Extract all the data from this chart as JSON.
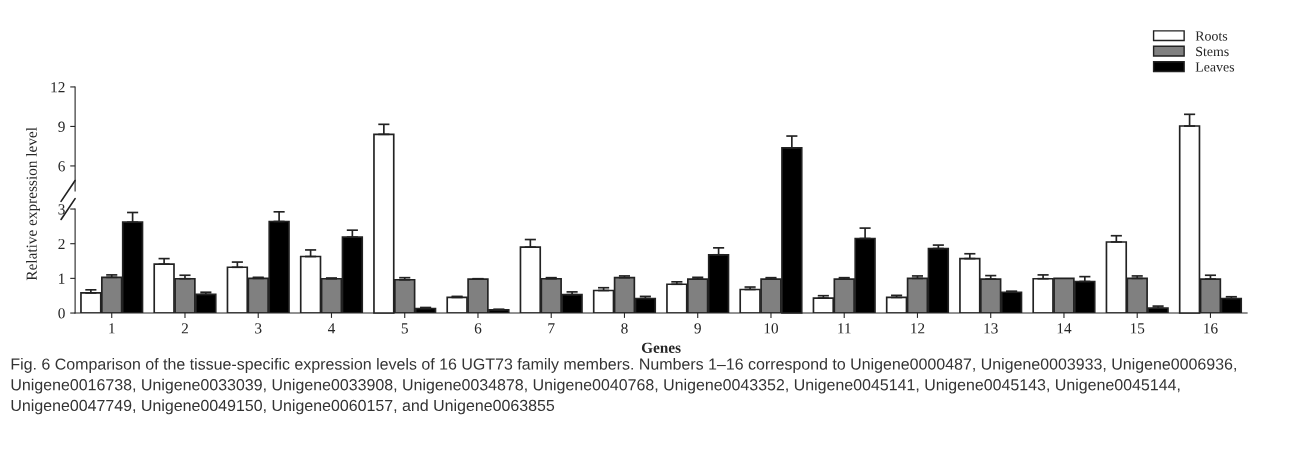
{
  "chart_data": [
    {
      "type": "bar",
      "categories": [
        "1",
        "2",
        "3",
        "4",
        "5",
        "6",
        "7",
        "8",
        "9",
        "10",
        "11",
        "12",
        "13",
        "14",
        "15",
        "16"
      ],
      "series": [
        {
          "name": "Roots",
          "color": "#ffffff",
          "values": [
            null,
            null,
            null,
            null,
            8.4,
            null,
            null,
            null,
            null,
            null,
            null,
            null,
            null,
            null,
            null,
            9.03
          ],
          "errors": [
            null,
            null,
            null,
            null,
            [
              8.4,
              9.16
            ],
            null,
            null,
            null,
            null,
            null,
            null,
            null,
            null,
            null,
            null,
            [
              9.03,
              9.92
            ]
          ]
        },
        {
          "name": "Stems",
          "color": "#808080",
          "values": [
            null,
            null,
            null,
            null,
            null,
            null,
            null,
            null,
            null,
            null,
            null,
            null,
            null,
            null,
            null,
            null
          ]
        },
        {
          "name": "Leaves",
          "color": "#000000",
          "values": [
            null,
            null,
            null,
            null,
            null,
            null,
            null,
            null,
            null,
            7.37,
            null,
            null,
            null,
            null,
            null,
            null
          ],
          "errors": [
            null,
            null,
            null,
            null,
            null,
            null,
            null,
            null,
            null,
            [
              7.37,
              8.27
            ],
            null,
            null,
            null,
            null,
            null,
            null
          ]
        }
      ],
      "ylim": [
        4.1,
        12
      ],
      "yticks": [
        6,
        9,
        12
      ],
      "tick_labels": "y",
      "grid": false,
      "legend": "top right"
    },
    {
      "type": "bar",
      "xlabel": "Genes",
      "ylabel": "Relative expression level",
      "categories": [
        "1",
        "2",
        "3",
        "4",
        "5",
        "6",
        "7",
        "8",
        "9",
        "10",
        "11",
        "12",
        "13",
        "14",
        "15",
        "16"
      ],
      "series": [
        {
          "color": "#ffffff",
          "values": [
            0.58,
            1.41,
            1.32,
            1.63,
            null,
            0.45,
            1.9,
            0.65,
            0.83,
            0.68,
            0.43,
            0.45,
            1.57,
            0.99,
            2.05,
            null
          ],
          "errors": [
            [
              0.58,
              0.67
            ],
            [
              1.41,
              1.57
            ],
            [
              1.32,
              1.47
            ],
            [
              1.63,
              1.82
            ],
            null,
            [
              0.45,
              0.48
            ],
            [
              1.9,
              2.12
            ],
            [
              0.65,
              0.73
            ],
            [
              0.83,
              0.9
            ],
            [
              0.68,
              0.75
            ],
            [
              0.43,
              0.5
            ],
            [
              0.45,
              0.51
            ],
            [
              1.57,
              1.71
            ],
            [
              0.99,
              1.1
            ],
            [
              2.05,
              2.23
            ],
            null
          ]
        },
        {
          "color": "#808080",
          "values": [
            1.03,
            0.99,
            1.0,
            0.99,
            0.96,
            0.98,
            0.99,
            1.02,
            0.98,
            0.98,
            0.98,
            1.0,
            0.98,
            1.0,
            1.0,
            0.98
          ],
          "errors": [
            [
              1.03,
              1.1
            ],
            [
              0.99,
              1.09
            ],
            [
              1.0,
              1.03
            ],
            [
              0.99,
              1.01
            ],
            [
              0.96,
              1.02
            ],
            [
              0.98,
              0.99
            ],
            [
              0.99,
              1.02
            ],
            [
              1.02,
              1.07
            ],
            [
              0.98,
              1.03
            ],
            [
              0.98,
              1.02
            ],
            [
              0.98,
              1.02
            ],
            [
              1.0,
              1.07
            ],
            [
              0.98,
              1.08
            ],
            null,
            [
              1.0,
              1.07
            ],
            [
              0.98,
              1.09
            ]
          ]
        },
        {
          "color": "#000000",
          "values": [
            2.62,
            0.54,
            2.64,
            2.19,
            0.13,
            0.09,
            0.53,
            0.42,
            1.68,
            null,
            2.15,
            1.86,
            0.6,
            0.91,
            0.14,
            0.42
          ],
          "errors": [
            [
              2.62,
              2.9
            ],
            [
              0.54,
              0.6
            ],
            [
              2.64,
              2.92
            ],
            [
              2.19,
              2.39
            ],
            [
              0.13,
              0.16
            ],
            [
              0.09,
              0.11
            ],
            [
              0.53,
              0.61
            ],
            [
              0.42,
              0.48
            ],
            [
              1.68,
              1.88
            ],
            null,
            [
              2.15,
              2.45
            ],
            [
              1.86,
              1.96
            ],
            [
              0.6,
              0.63
            ],
            [
              0.91,
              1.05
            ],
            [
              0.14,
              0.2
            ],
            [
              0.42,
              0.47
            ]
          ]
        }
      ],
      "ylim": [
        0,
        3
      ],
      "yticks": [
        0,
        1,
        2,
        3
      ],
      "grid": false,
      "annotations": [
        "Fig. 6 Comparison of the tissue-specific expression levels of 16 UGT73 family members. Numbers 1–16 correspond to Unigene0000487, Unigene0003933, Unigene0006936, Unigene0016738, Unigene0033039, Unigene0033908, Unigene0034878, Unigene0040768, Unigene0043352, Unigene0045141, Unigene0045143, Unigene0045144, Unigene0047749, Unigene0049150, Unigene0060157, and Unigene0063855"
      ]
    }
  ]
}
